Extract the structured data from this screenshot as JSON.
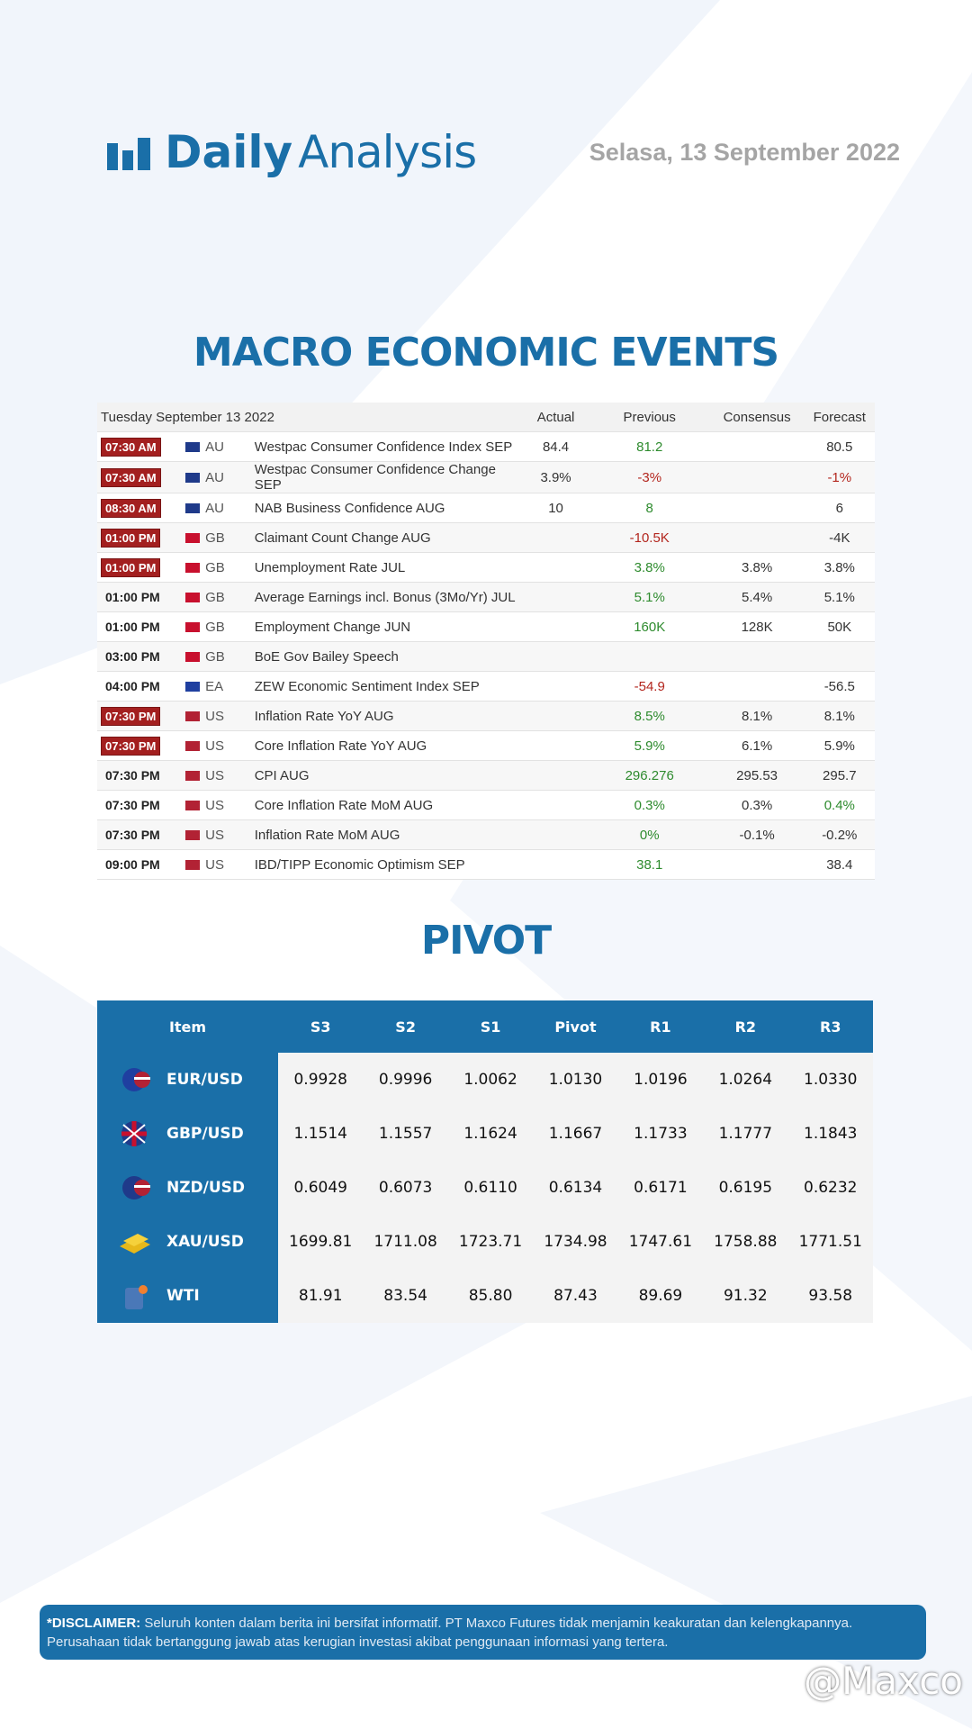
{
  "header": {
    "logo_bold": "Daily",
    "logo_light": "Analysis",
    "date": "Selasa, 13 September 2022"
  },
  "macro": {
    "title": "MACRO ECONOMIC EVENTS",
    "columns": [
      "Tuesday September 13 2022",
      "Actual",
      "Previous",
      "Consensus",
      "Forecast"
    ],
    "rows": [
      {
        "time": "07:30 AM",
        "badge": true,
        "country": "AU",
        "event": "Westpac Consumer Confidence Index SEP",
        "actual": "84.4",
        "previous": "81.2",
        "previous_color": "green",
        "consensus": null,
        "forecast": "80.5",
        "forecast_color": "black"
      },
      {
        "time": "07:30 AM",
        "badge": true,
        "country": "AU",
        "event": "Westpac Consumer Confidence Change SEP",
        "actual": "3.9%",
        "previous": "-3%",
        "previous_color": "red",
        "consensus": null,
        "forecast": "-1%",
        "forecast_color": "red"
      },
      {
        "time": "08:30 AM",
        "badge": true,
        "country": "AU",
        "event": "NAB Business Confidence AUG",
        "actual": "10",
        "previous": "8",
        "previous_color": "green",
        "consensus": null,
        "forecast": "6",
        "forecast_color": "black"
      },
      {
        "time": "01:00 PM",
        "badge": true,
        "country": "GB",
        "event": "Claimant Count Change AUG",
        "actual": null,
        "previous": "-10.5K",
        "previous_color": "red",
        "consensus": null,
        "forecast": "-4K",
        "forecast_color": "black"
      },
      {
        "time": "01:00 PM",
        "badge": true,
        "country": "GB",
        "event": "Unemployment Rate JUL",
        "actual": null,
        "previous": "3.8%",
        "previous_color": "green",
        "consensus": "3.8%",
        "forecast": "3.8%",
        "forecast_color": "black"
      },
      {
        "time": "01:00 PM",
        "badge": false,
        "country": "GB",
        "event": "Average Earnings incl. Bonus (3Mo/Yr) JUL",
        "actual": null,
        "previous": "5.1%",
        "previous_color": "green",
        "consensus": "5.4%",
        "forecast": "5.1%",
        "forecast_color": "black"
      },
      {
        "time": "01:00 PM",
        "badge": false,
        "country": "GB",
        "event": "Employment Change JUN",
        "actual": null,
        "previous": "160K",
        "previous_color": "green",
        "consensus": "128K",
        "forecast": "50K",
        "forecast_color": "black"
      },
      {
        "time": "03:00 PM",
        "badge": false,
        "country": "GB",
        "event": "BoE Gov Bailey Speech",
        "actual": null,
        "previous": null,
        "previous_color": "black",
        "consensus": null,
        "forecast": null,
        "forecast_color": "black"
      },
      {
        "time": "04:00 PM",
        "badge": false,
        "country": "EA",
        "event": "ZEW Economic Sentiment Index SEP",
        "actual": null,
        "previous": "-54.9",
        "previous_color": "red",
        "consensus": null,
        "forecast": "-56.5",
        "forecast_color": "black"
      },
      {
        "time": "07:30 PM",
        "badge": true,
        "country": "US",
        "event": "Inflation Rate YoY AUG",
        "actual": null,
        "previous": "8.5%",
        "previous_color": "green",
        "consensus": "8.1%",
        "forecast": "8.1%",
        "forecast_color": "black"
      },
      {
        "time": "07:30 PM",
        "badge": true,
        "country": "US",
        "event": "Core Inflation Rate YoY AUG",
        "actual": null,
        "previous": "5.9%",
        "previous_color": "green",
        "consensus": "6.1%",
        "forecast": "5.9%",
        "forecast_color": "black"
      },
      {
        "time": "07:30 PM",
        "badge": false,
        "country": "US",
        "event": "CPI AUG",
        "actual": null,
        "previous": "296.276",
        "previous_color": "green",
        "consensus": "295.53",
        "forecast": "295.7",
        "forecast_color": "black"
      },
      {
        "time": "07:30 PM",
        "badge": false,
        "country": "US",
        "event": "Core Inflation Rate MoM AUG",
        "actual": null,
        "previous": "0.3%",
        "previous_color": "green",
        "consensus": "0.3%",
        "forecast": "0.4%",
        "forecast_color": "green"
      },
      {
        "time": "07:30 PM",
        "badge": false,
        "country": "US",
        "event": "Inflation Rate MoM AUG",
        "actual": null,
        "previous": "0%",
        "previous_color": "green",
        "consensus": "-0.1%",
        "forecast": "-0.2%",
        "forecast_color": "black"
      },
      {
        "time": "09:00 PM",
        "badge": false,
        "country": "US",
        "event": "IBD/TIPP Economic Optimism SEP",
        "actual": null,
        "previous": "38.1",
        "previous_color": "green",
        "consensus": null,
        "forecast": "38.4",
        "forecast_color": "black"
      }
    ]
  },
  "pivot": {
    "title": "PIVOT",
    "columns": [
      "Item",
      "S3",
      "S2",
      "S1",
      "Pivot",
      "R1",
      "R2",
      "R3"
    ],
    "rows": [
      [
        "EUR/USD",
        "0.9928",
        "0.9996",
        "1.0062",
        "1.0130",
        "1.0196",
        "1.0264",
        "1.0330"
      ],
      [
        "GBP/USD",
        "1.1514",
        "1.1557",
        "1.1624",
        "1.1667",
        "1.1733",
        "1.1777",
        "1.1843"
      ],
      [
        "NZD/USD",
        "0.6049",
        "0.6073",
        "0.6110",
        "0.6134",
        "0.6171",
        "0.6195",
        "0.6232"
      ],
      [
        "XAU/USD",
        "1699.81",
        "1711.08",
        "1723.71",
        "1734.98",
        "1747.61",
        "1758.88",
        "1771.51"
      ],
      [
        "WTI",
        "81.91",
        "83.54",
        "85.80",
        "87.43",
        "89.69",
        "91.32",
        "93.58"
      ]
    ]
  },
  "disclaimer": {
    "label": "*DISCLAIMER:",
    "text": "Seluruh konten dalam berita ini bersifat informatif. PT Maxco Futures tidak menjamin keakuratan dan kelengkapannya. Perusahaan tidak bertanggung jawab atas kerugian investasi akibat penggunaan informasi yang tertera."
  },
  "watermark": "@Maxco"
}
